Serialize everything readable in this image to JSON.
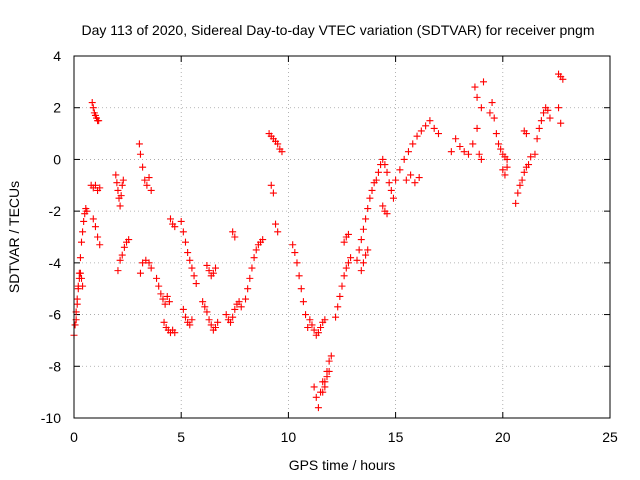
{
  "chart_data": {
    "type": "scatter",
    "title": "Day 113 of 2020, Sidereal Day-to-day VTEC variation (SDTVAR) for receiver pngm",
    "xlabel": "GPS time / hours",
    "ylabel": "SDTVAR / TECUs",
    "xlim": [
      0,
      25
    ],
    "ylim": [
      -10,
      4
    ],
    "xticks": [
      0,
      5,
      10,
      15,
      20,
      25
    ],
    "yticks": [
      -10,
      -8,
      -6,
      -4,
      -2,
      0,
      2,
      4
    ],
    "grid": true,
    "marker": "plus",
    "marker_color": "#ff0000",
    "series": [
      {
        "name": "SDTVAR",
        "x": [
          0.0,
          0.05,
          0.1,
          0.15,
          0.2,
          0.25,
          0.3,
          0.35,
          0.4,
          0.45,
          0.5,
          0.55,
          0.6,
          0.1,
          0.15,
          0.2,
          0.25,
          0.3,
          0.35,
          0.4,
          0.85,
          0.9,
          0.95,
          1.0,
          1.05,
          1.1,
          1.15,
          0.8,
          0.9,
          1.0,
          1.1,
          1.2,
          0.9,
          1.0,
          1.1,
          1.2,
          1.95,
          2.0,
          2.05,
          2.1,
          2.15,
          2.2,
          2.25,
          2.3,
          2.05,
          2.15,
          2.25,
          2.35,
          2.45,
          2.55,
          3.05,
          3.1,
          3.2,
          3.3,
          3.4,
          3.5,
          3.6,
          3.1,
          3.2,
          3.35,
          3.5,
          3.6,
          3.85,
          3.95,
          4.05,
          4.15,
          4.25,
          4.35,
          4.45,
          4.2,
          4.3,
          4.4,
          4.5,
          4.6,
          4.7,
          4.5,
          4.6,
          4.7,
          5.0,
          5.1,
          5.2,
          5.3,
          5.4,
          5.5,
          5.6,
          5.7,
          5.1,
          5.2,
          5.3,
          5.4,
          5.5,
          6.0,
          6.1,
          6.2,
          6.3,
          6.4,
          6.5,
          6.6,
          6.7,
          6.2,
          6.3,
          6.4,
          6.5,
          6.6,
          7.1,
          7.2,
          7.3,
          7.4,
          7.5,
          7.6,
          7.7,
          7.8,
          7.4,
          7.5,
          8.0,
          8.1,
          8.2,
          8.3,
          8.4,
          8.5,
          8.6,
          8.7,
          8.8,
          9.1,
          9.2,
          9.3,
          9.4,
          9.5,
          9.6,
          9.7,
          9.2,
          9.3,
          9.4,
          9.5,
          10.2,
          10.3,
          10.4,
          10.5,
          10.6,
          10.7,
          10.8,
          10.9,
          11.0,
          11.1,
          11.2,
          11.3,
          11.4,
          11.5,
          11.6,
          11.7,
          11.2,
          11.3,
          11.4,
          11.5,
          11.6,
          11.7,
          11.8,
          11.9,
          11.6,
          11.7,
          11.8,
          11.9,
          12.0,
          12.2,
          12.3,
          12.4,
          12.5,
          12.6,
          12.7,
          12.8,
          12.9,
          12.6,
          12.7,
          12.8,
          13.2,
          13.3,
          13.4,
          13.5,
          13.6,
          13.7,
          13.8,
          13.9,
          14.0,
          13.4,
          13.5,
          13.6,
          13.7,
          14.1,
          14.2,
          14.3,
          14.4,
          14.5,
          14.6,
          14.7,
          14.8,
          14.9,
          14.4,
          14.5,
          14.6,
          15.0,
          15.2,
          15.4,
          15.6,
          15.8,
          16.0,
          16.2,
          16.4,
          16.6,
          16.8,
          17.0,
          15.5,
          15.7,
          15.9,
          16.1,
          17.6,
          17.8,
          18.0,
          18.2,
          18.4,
          18.6,
          18.8,
          19.0,
          19.1,
          18.7,
          18.8,
          18.9,
          19.0,
          19.4,
          19.5,
          19.6,
          19.7,
          19.8,
          19.9,
          20.0,
          20.1,
          20.2,
          20.0,
          20.1,
          20.2,
          20.6,
          20.7,
          20.8,
          20.9,
          21.0,
          21.1,
          21.2,
          21.3,
          21.0,
          21.1,
          21.5,
          21.6,
          21.7,
          21.8,
          21.9,
          22.0,
          22.1,
          22.2,
          22.6,
          22.7,
          22.8,
          22.6,
          22.7
        ],
        "y": [
          -6.8,
          -6.4,
          -5.9,
          -5.4,
          -4.9,
          -4.4,
          -3.8,
          -3.2,
          -2.8,
          -2.4,
          -2.1,
          -1.9,
          -2.0,
          -6.2,
          -5.6,
          -5.0,
          -4.6,
          -4.4,
          -4.6,
          -4.9,
          2.2,
          2.0,
          1.8,
          1.7,
          1.6,
          1.5,
          1.5,
          -1.0,
          -1.1,
          -1.0,
          -1.2,
          -1.1,
          -2.3,
          -2.6,
          -3.0,
          -3.3,
          -0.6,
          -0.9,
          -1.2,
          -1.5,
          -1.8,
          -1.4,
          -1.0,
          -0.8,
          -4.3,
          -3.9,
          -3.7,
          -3.4,
          -3.2,
          -3.1,
          0.6,
          0.2,
          -0.3,
          -0.8,
          -1.0,
          -0.7,
          -1.2,
          -4.4,
          -4.0,
          -3.9,
          -4.0,
          -4.2,
          -4.6,
          -4.9,
          -5.2,
          -5.4,
          -5.6,
          -5.3,
          -5.5,
          -6.3,
          -6.5,
          -6.6,
          -6.7,
          -6.6,
          -6.7,
          -2.3,
          -2.5,
          -2.6,
          -2.4,
          -2.8,
          -3.2,
          -3.6,
          -3.9,
          -4.2,
          -4.5,
          -4.8,
          -5.8,
          -6.1,
          -6.3,
          -6.4,
          -6.2,
          -5.5,
          -5.7,
          -5.9,
          -6.2,
          -6.4,
          -6.6,
          -6.5,
          -6.3,
          -4.1,
          -4.3,
          -4.5,
          -4.4,
          -4.2,
          -6.0,
          -6.2,
          -6.3,
          -6.1,
          -5.8,
          -5.6,
          -5.5,
          -5.7,
          -2.8,
          -3.0,
          -5.4,
          -5.0,
          -4.6,
          -4.2,
          -3.8,
          -3.5,
          -3.3,
          -3.2,
          -3.1,
          1.0,
          0.9,
          0.8,
          0.7,
          0.6,
          0.4,
          0.3,
          -1.0,
          -1.3,
          -2.5,
          -2.8,
          -3.3,
          -3.6,
          -4.0,
          -4.5,
          -5.0,
          -5.5,
          -6.0,
          -6.5,
          -6.2,
          -6.4,
          -6.6,
          -6.8,
          -6.7,
          -6.5,
          -6.3,
          -6.2,
          -8.8,
          -9.2,
          -9.6,
          -9.0,
          -8.6,
          -8.8,
          -8.4,
          -8.2,
          -9.0,
          -8.6,
          -8.2,
          -7.8,
          -7.6,
          -6.1,
          -5.7,
          -5.3,
          -4.9,
          -4.5,
          -4.2,
          -4.0,
          -3.8,
          -3.2,
          -3.0,
          -2.9,
          -3.9,
          -3.5,
          -3.1,
          -2.7,
          -2.3,
          -1.9,
          -1.5,
          -1.2,
          -0.9,
          -4.3,
          -4.0,
          -3.7,
          -3.5,
          -0.8,
          -0.5,
          -0.2,
          0.0,
          -0.2,
          -0.5,
          -0.9,
          -1.2,
          -1.5,
          -1.8,
          -2.0,
          -2.1,
          -0.8,
          -0.4,
          0.0,
          0.3,
          0.6,
          0.9,
          1.1,
          1.3,
          1.5,
          1.2,
          1.0,
          -0.8,
          -0.6,
          -0.9,
          -0.7,
          0.3,
          0.8,
          0.5,
          0.3,
          0.2,
          0.6,
          1.2,
          2.0,
          3.0,
          2.8,
          2.4,
          0.2,
          0.0,
          1.8,
          2.2,
          1.6,
          1.0,
          0.6,
          0.4,
          0.2,
          0.1,
          0.0,
          -0.4,
          -0.6,
          -0.3,
          -1.7,
          -1.3,
          -1.0,
          -0.8,
          -0.5,
          -0.3,
          -0.2,
          0.1,
          1.1,
          1.0,
          0.2,
          0.8,
          1.2,
          1.5,
          1.8,
          2.0,
          1.9,
          1.6,
          3.3,
          3.2,
          3.1,
          2.0,
          1.4
        ]
      }
    ]
  }
}
